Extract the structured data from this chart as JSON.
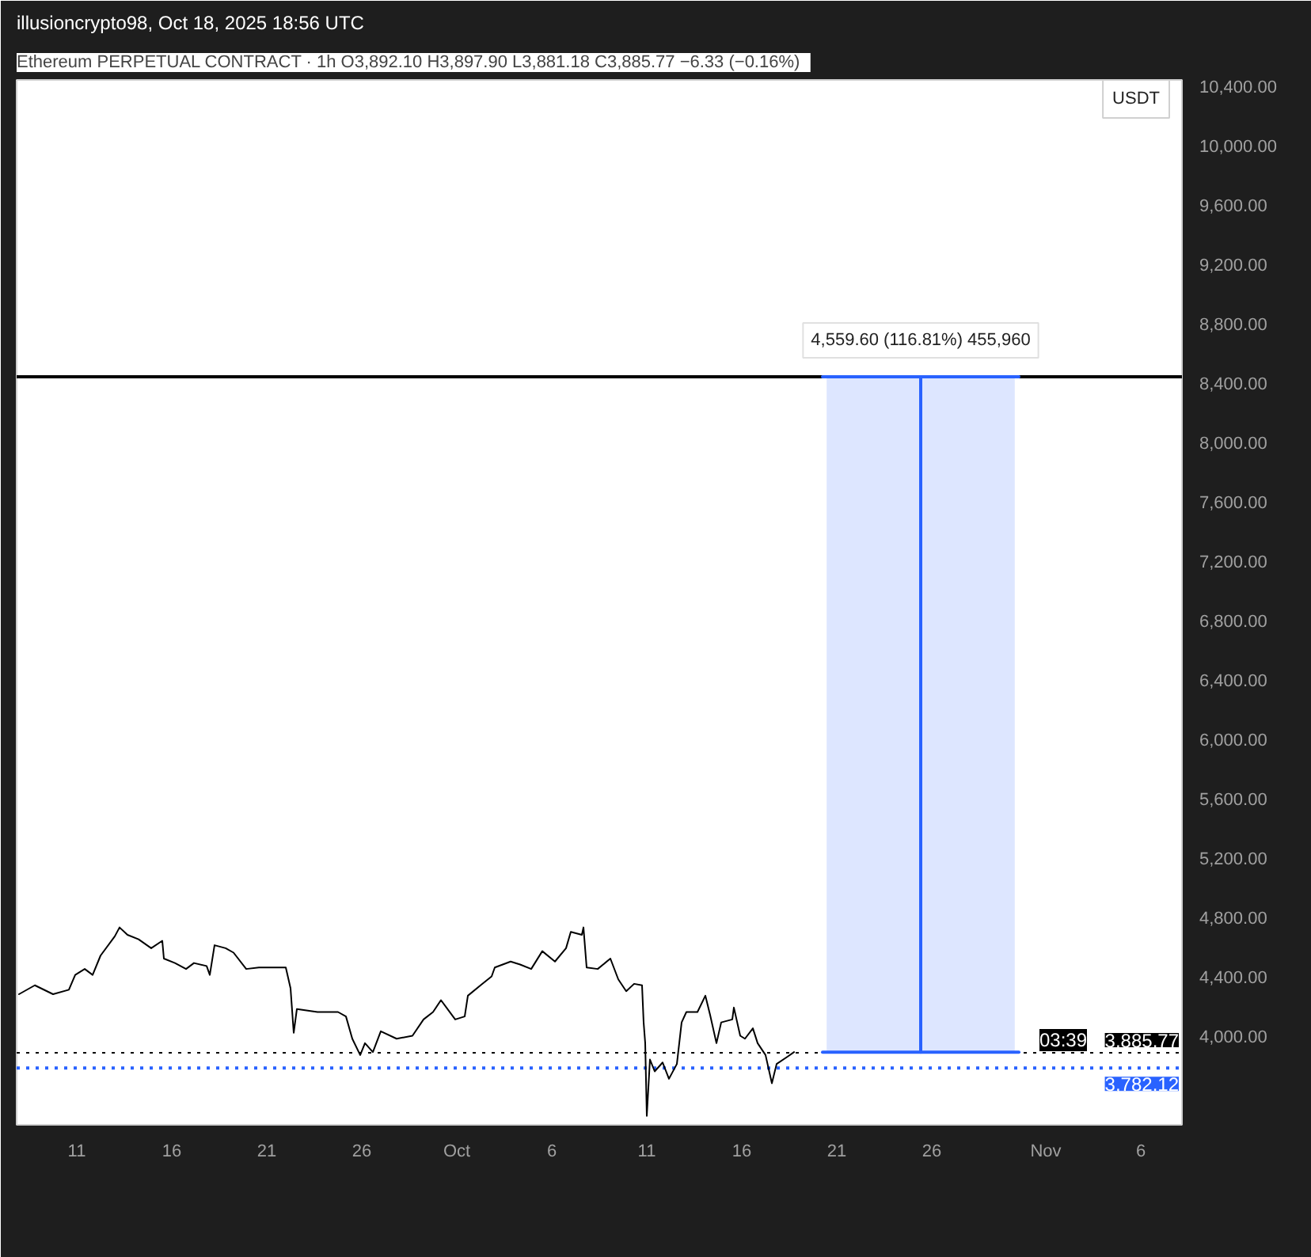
{
  "chart_data": {
    "type": "line",
    "title": "Ethereum PERPETUAL CONTRACT · 1h",
    "subtitle": "O3,892.10 H3,897.90 L3,881.18 C3,885.77 −6.33 (−0.16%)",
    "ylabel": "USDT",
    "annotations": [
      "illusioncrypto98, Oct 18, 2025 18:56 UTC",
      "03:39",
      {
        "text": "4,559.60 (116.81%) 455,960",
        "x": "2025-10-25T10:00",
        "y": 8440
      }
    ],
    "series": [
      {
        "color": "#000000",
        "x": [
          "2025-09-07T23:00",
          "2025-09-08T19:00",
          "2025-09-09T18:00",
          "2025-09-10T14:00",
          "2025-09-10T22:00",
          "2025-09-11T10:00",
          "2025-09-11T20:00",
          "2025-09-12T06:00",
          "2025-09-13T00:00",
          "2025-09-13T06:00",
          "2025-09-13T16:00",
          "2025-09-14T06:00",
          "2025-09-14T22:00",
          "2025-09-15T12:00",
          "2025-09-15T14:00",
          "2025-09-16T04:00",
          "2025-09-16T18:00",
          "2025-09-17T04:00",
          "2025-09-17T20:00",
          "2025-09-18T00:00",
          "2025-09-18T06:00",
          "2025-09-18T20:00",
          "2025-09-19T06:00",
          "2025-09-19T22:00",
          "2025-09-20T14:00",
          "2025-09-21T10:00",
          "2025-09-22T00:00",
          "2025-09-22T06:00",
          "2025-09-22T10:00",
          "2025-09-22T14:00",
          "2025-09-23T16:00",
          "2025-09-24T18:00",
          "2025-09-25T04:00",
          "2025-09-25T12:00",
          "2025-09-25T22:00",
          "2025-09-26T04:00",
          "2025-09-26T14:00",
          "2025-09-27T00:00",
          "2025-09-27T20:00",
          "2025-09-28T16:00",
          "2025-09-29T06:00",
          "2025-09-29T18:00",
          "2025-09-30T04:00",
          "2025-09-30T22:00",
          "2025-10-01T10:00",
          "2025-10-01T14:00",
          "2025-10-02T06:00",
          "2025-10-02T20:00",
          "2025-10-03T00:00",
          "2025-10-03T20:00",
          "2025-10-04T08:00",
          "2025-10-04T22:00",
          "2025-10-05T12:00",
          "2025-10-06T04:00",
          "2025-10-06T18:00",
          "2025-10-07T00:00",
          "2025-10-07T14:00",
          "2025-10-07T16:00",
          "2025-10-07T20:00",
          "2025-10-08T10:00",
          "2025-10-09T02:00",
          "2025-10-09T12:00",
          "2025-10-09T22:00",
          "2025-10-10T08:00",
          "2025-10-10T18:00",
          "2025-10-10T20:00",
          "2025-10-10T22:00",
          "2025-10-11T00:00",
          "2025-10-11T04:00",
          "2025-10-11T10:00",
          "2025-10-11T20:00",
          "2025-10-12T04:00",
          "2025-10-12T14:00",
          "2025-10-12T20:00",
          "2025-10-13T02:00",
          "2025-10-13T16:00",
          "2025-10-14T02:00",
          "2025-10-14T08:00",
          "2025-10-14T16:00",
          "2025-10-14T22:00",
          "2025-10-15T12:00",
          "2025-10-15T14:00",
          "2025-10-15T22:00",
          "2025-10-16T04:00",
          "2025-10-16T14:00",
          "2025-10-16T20:00",
          "2025-10-17T06:00",
          "2025-10-17T14:00",
          "2025-10-17T20:00",
          "2025-10-18T10:00",
          "2025-10-18T18:00"
        ],
        "values": [
          4280,
          4340,
          4280,
          4310,
          4410,
          4450,
          4410,
          4540,
          4670,
          4730,
          4680,
          4650,
          4590,
          4640,
          4520,
          4490,
          4450,
          4490,
          4470,
          4410,
          4610,
          4590,
          4560,
          4450,
          4460,
          4460,
          4460,
          4320,
          4020,
          4180,
          4160,
          4160,
          4130,
          3980,
          3870,
          3950,
          3890,
          4030,
          3980,
          4000,
          4110,
          4160,
          4240,
          4110,
          4130,
          4270,
          4340,
          4400,
          4460,
          4500,
          4480,
          4450,
          4570,
          4500,
          4590,
          4700,
          4680,
          4730,
          4460,
          4450,
          4520,
          4380,
          4300,
          4350,
          4340,
          4090,
          3950,
          3460,
          3840,
          3760,
          3820,
          3710,
          3810,
          4090,
          4160,
          4160,
          4270,
          4140,
          3950,
          4090,
          4110,
          4190,
          4000,
          3980,
          4050,
          3950,
          3870,
          3680,
          3810,
          3860,
          3890
        ]
      },
      {
        "type": "bar",
        "color": "#2962ff",
        "x": [
          "2025-10-25T10:00"
        ],
        "values": [
          4550
        ],
        "base": [
          3890
        ]
      },
      {
        "type": "line",
        "color": "#2962ff",
        "x": [
          "2025-10-20T06:00",
          "2025-10-30T14:00"
        ],
        "values": [
          8440,
          8440
        ]
      },
      {
        "type": "line",
        "color": "#2962ff",
        "x": [
          "2025-10-20T06:00",
          "2025-10-30T14:00"
        ],
        "values": [
          3890,
          3890
        ]
      },
      {
        "type": "line",
        "color": "#2962ff",
        "x": [
          "2025-10-25T10:00",
          "2025-10-25T10:00"
        ],
        "values": [
          3890,
          8440
        ]
      }
    ],
    "ref_lines": [
      {
        "axis": "y",
        "value": 8440,
        "color": "#000000",
        "line_style": "solid"
      },
      {
        "axis": "y",
        "value": 3885.77,
        "label": "3,885.77",
        "color": "#000000",
        "line_style": "dotted"
      },
      {
        "axis": "y",
        "value": 3782.12,
        "label": "3,782.12",
        "color": "#2962ff",
        "line_style": "dotted"
      }
    ],
    "xlim": [
      "2025-09-07T20:00",
      "2025-11-08T04:00"
    ],
    "xticks": [
      {
        "value": "2025-09-11",
        "label": "11"
      },
      {
        "value": "2025-09-16",
        "label": "16"
      },
      {
        "value": "2025-09-21",
        "label": "21"
      },
      {
        "value": "2025-09-26",
        "label": "26"
      },
      {
        "value": "2025-10-01",
        "label": "Oct"
      },
      {
        "value": "2025-10-06",
        "label": "6"
      },
      {
        "value": "2025-10-11",
        "label": "11"
      },
      {
        "value": "2025-10-16",
        "label": "16"
      },
      {
        "value": "2025-10-21",
        "label": "21"
      },
      {
        "value": "2025-10-26",
        "label": "26"
      },
      {
        "value": "2025-11-01",
        "label": "Nov"
      },
      {
        "value": "2025-11-06",
        "label": "6"
      }
    ],
    "ylim": [
      3400,
      10440
    ],
    "yticks": [
      {
        "value": 4000,
        "label": "4,000.00"
      },
      {
        "value": 4400,
        "label": "4,400.00"
      },
      {
        "value": 4800,
        "label": "4,800.00"
      },
      {
        "value": 5200,
        "label": "5,200.00"
      },
      {
        "value": 5600,
        "label": "5,600.00"
      },
      {
        "value": 6000,
        "label": "6,000.00"
      },
      {
        "value": 6400,
        "label": "6,400.00"
      },
      {
        "value": 6800,
        "label": "6,800.00"
      },
      {
        "value": 7200,
        "label": "7,200.00"
      },
      {
        "value": 7600,
        "label": "7,600.00"
      },
      {
        "value": 8000,
        "label": "8,000.00"
      },
      {
        "value": 8400,
        "label": "8,400.00"
      },
      {
        "value": 8800,
        "label": "8,800.00"
      },
      {
        "value": 9200,
        "label": "9,200.00"
      },
      {
        "value": 9600,
        "label": "9,600.00"
      },
      {
        "value": 10000,
        "label": "10,000.00"
      },
      {
        "value": 10400,
        "label": "10,400.00"
      }
    ],
    "grid": false,
    "marker": "none",
    "line_style": "solid"
  }
}
